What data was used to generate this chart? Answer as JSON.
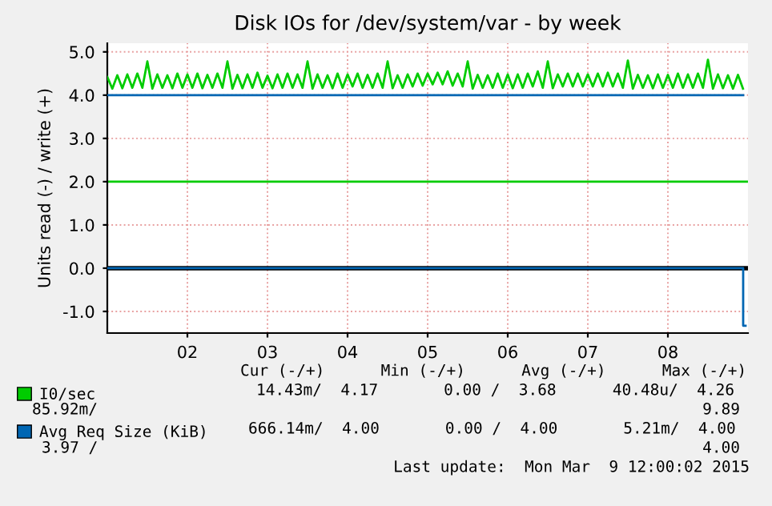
{
  "chart_data": {
    "type": "line",
    "title": "Disk IOs for /dev/system/var - by week",
    "ylabel": "Units read (-) / write (+)",
    "xlim": [
      1.5,
      9.5
    ],
    "xticks": [
      {
        "value": 2.5,
        "label": "02"
      },
      {
        "value": 3.5,
        "label": "03"
      },
      {
        "value": 4.5,
        "label": "04"
      },
      {
        "value": 5.5,
        "label": "05"
      },
      {
        "value": 6.5,
        "label": "06"
      },
      {
        "value": 7.5,
        "label": "07"
      },
      {
        "value": 8.5,
        "label": "08"
      }
    ],
    "ylim": [
      -1.5,
      5.2
    ],
    "yticks": [
      {
        "value": -1,
        "label": "-1.0"
      },
      {
        "value": 0,
        "label": "0.0"
      },
      {
        "value": 1,
        "label": "1.0"
      },
      {
        "value": 2,
        "label": "2.0"
      },
      {
        "value": 3,
        "label": "3.0"
      },
      {
        "value": 4,
        "label": "4.0"
      },
      {
        "value": 5,
        "label": "5.0"
      }
    ],
    "grid": true,
    "legend": "bottom",
    "marker": "none",
    "line_style": "solid",
    "series": [
      {
        "name": "I0/sec",
        "color": "#00cc00",
        "x": [
          1.5,
          1.5625,
          1.625,
          1.6875,
          1.75,
          1.8125,
          1.875,
          1.9375,
          2,
          2.0625,
          2.125,
          2.1875,
          2.25,
          2.3125,
          2.375,
          2.4375,
          2.5,
          2.5625,
          2.625,
          2.6875,
          2.75,
          2.8125,
          2.875,
          2.9375,
          3,
          3.0625,
          3.125,
          3.1875,
          3.25,
          3.3125,
          3.375,
          3.4375,
          3.5,
          3.5625,
          3.625,
          3.6875,
          3.75,
          3.8125,
          3.875,
          3.9375,
          4,
          4.0625,
          4.125,
          4.1875,
          4.25,
          4.3125,
          4.375,
          4.4375,
          4.5,
          4.5625,
          4.625,
          4.6875,
          4.75,
          4.8125,
          4.875,
          4.9375,
          5,
          5.0625,
          5.125,
          5.1875,
          5.25,
          5.3125,
          5.375,
          5.4375,
          5.5,
          5.5625,
          5.625,
          5.6875,
          5.75,
          5.8125,
          5.875,
          5.9375,
          6,
          6.0625,
          6.125,
          6.1875,
          6.25,
          6.3125,
          6.375,
          6.4375,
          6.5,
          6.5625,
          6.625,
          6.6875,
          6.75,
          6.8125,
          6.875,
          6.9375,
          7,
          7.0625,
          7.125,
          7.1875,
          7.25,
          7.3125,
          7.375,
          7.4375,
          7.5,
          7.5625,
          7.625,
          7.6875,
          7.75,
          7.8125,
          7.875,
          7.9375,
          8,
          8.0625,
          8.125,
          8.1875,
          8.25,
          8.3125,
          8.375,
          8.4375,
          8.5,
          8.5625,
          8.625,
          8.6875,
          8.75,
          8.8125,
          8.875,
          8.9375,
          9,
          9.0625,
          9.125,
          9.1875,
          9.25,
          9.3125,
          9.375,
          9.4375
        ],
        "values": [
          4.42,
          4.15,
          4.46,
          4.16,
          4.48,
          4.17,
          4.5,
          4.17,
          4.78,
          4.15,
          4.48,
          4.17,
          4.46,
          4.16,
          4.5,
          4.17,
          4.48,
          4.17,
          4.5,
          4.16,
          4.47,
          4.17,
          4.5,
          4.17,
          4.78,
          4.15,
          4.47,
          4.16,
          4.48,
          4.17,
          4.52,
          4.17,
          4.45,
          4.16,
          4.48,
          4.17,
          4.5,
          4.17,
          4.48,
          4.17,
          4.78,
          4.15,
          4.48,
          4.17,
          4.46,
          4.16,
          4.5,
          4.17,
          4.48,
          4.2,
          4.5,
          4.17,
          4.47,
          4.17,
          4.5,
          4.17,
          4.78,
          4.16,
          4.46,
          4.17,
          4.48,
          4.2,
          4.5,
          4.22,
          4.5,
          4.25,
          4.52,
          4.25,
          4.55,
          4.22,
          4.5,
          4.2,
          4.78,
          4.15,
          4.47,
          4.17,
          4.46,
          4.17,
          4.5,
          4.17,
          4.48,
          4.16,
          4.48,
          4.17,
          4.5,
          4.2,
          4.55,
          4.17,
          4.78,
          4.16,
          4.48,
          4.2,
          4.5,
          4.2,
          4.5,
          4.2,
          4.48,
          4.2,
          4.5,
          4.2,
          4.52,
          4.2,
          4.5,
          4.17,
          4.8,
          4.15,
          4.47,
          4.17,
          4.46,
          4.16,
          4.48,
          4.17,
          4.47,
          4.17,
          4.5,
          4.17,
          4.48,
          4.17,
          4.5,
          4.17,
          4.82,
          4.15,
          4.48,
          4.16,
          4.46,
          4.15,
          4.47,
          4.15
        ]
      },
      {
        "name": "Avg Req Size (KiB)",
        "color": "#0066b3",
        "x": [
          1.5,
          9.44
        ],
        "values": [
          4.0,
          4.0
        ]
      },
      {
        "type": "step",
        "color": "#0066b3",
        "x": [
          1.5,
          9.44,
          9.47
        ],
        "values": [
          0,
          -1.33,
          -1.33
        ]
      }
    ],
    "ref_lines": [
      {
        "axis": "y",
        "value": 2.0,
        "color": "#00cc00"
      },
      {
        "axis": "y",
        "value": 0,
        "color": "#000000"
      }
    ],
    "annotations": [
      "Cur (-/+)      Min (-/+)      Avg (-/+)      Max (-/+)",
      "14.43m/  4.17       0.00 /  3.68      40.48u/  4.26",
      "85.92m/",
      "9.89",
      "666.14m/  4.00       0.00 /  4.00       5.21m/  4.00",
      "3.97 /",
      "4.00",
      "Last update:  Mon Mar  9 12:00:02 2015"
    ]
  }
}
